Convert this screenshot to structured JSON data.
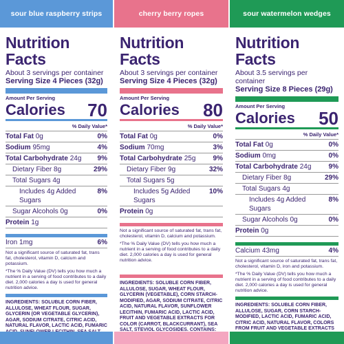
{
  "colors": {
    "blue": "#5b98d8",
    "pink": "#e8738c",
    "green": "#1f9a56",
    "text": "#3b2470"
  },
  "panels": [
    {
      "header": "sour blue raspberry strips",
      "title": "Nutrition Facts",
      "servings": "About 3 servings per container",
      "serving_size": "Serving Size 4 Pieces (32g)",
      "aps": "Amount Per Serving",
      "calories_label": "Calories",
      "calories": "70",
      "dv_label": "% Daily Value*",
      "rows": [
        {
          "l": "Total Fat",
          "v": "0g",
          "p": "0%"
        },
        {
          "l": "Sodium",
          "v": "95mg",
          "p": "4%"
        },
        {
          "l": "Total Carbohydrate",
          "v": "24g",
          "p": "9%"
        },
        {
          "l": "Dietary Fiber 8g",
          "v": "",
          "p": "29%"
        },
        {
          "l": "Total Sugars 4g",
          "v": "",
          "p": ""
        },
        {
          "l": "Includes 4g Added Sugars",
          "v": "",
          "p": "8%"
        },
        {
          "l": "Sugar Alcohols 0g",
          "v": "",
          "p": "0%"
        },
        {
          "l": "Protein",
          "v": "1g",
          "p": ""
        },
        {
          "l": "Iron 1mg",
          "v": "",
          "p": "6%"
        }
      ],
      "note": "Not a significant source of saturated fat, trans fat, cholesterol, vitamin D, calcium and potassium.",
      "footnote": "*The % Daily Value (DV) tells you how much a nutrient in a serving of food contributes to a daily diet. 2,000 calories a day is used for general nutrition advice.",
      "ingredients": "INGREDIENTS: SOLUBLE CORN FIBER, ALLULOSE, WHEAT FLOUR, SUGAR, GLYCERIN (OR VEGETABLE GLYCERIN), AGAR, SODIUM CITRATE, CITRIC ACID, NATURAL FLAVOR, LACTIC ACID, FUMARIC ACID, SUNFLOWER LECITHIN, SEA SALT, FRUIT AND VEGETABLE JUICE FOR COLOR (CARROT, BLUEBERRY), STEVIOL GLYCOSIDES."
    },
    {
      "header": "cherry berry ropes",
      "title": "Nutrition Facts",
      "servings": "About 3 servings per container",
      "serving_size": "Serving Size 4 Pieces (32g)",
      "aps": "Amount Per Serving",
      "calories_label": "Calories",
      "calories": "80",
      "dv_label": "% Daily Value*",
      "rows": [
        {
          "l": "Total Fat",
          "v": "0g",
          "p": "0%"
        },
        {
          "l": "Sodium",
          "v": "70mg",
          "p": "3%"
        },
        {
          "l": "Total Carbohydrate",
          "v": "25g",
          "p": "9%"
        },
        {
          "l": "Dietary Fiber 9g",
          "v": "",
          "p": "32%"
        },
        {
          "l": "Total Sugars 5g",
          "v": "",
          "p": ""
        },
        {
          "l": "Includes 5g Added Sugars",
          "v": "",
          "p": "10%"
        },
        {
          "l": "Protein",
          "v": "0g",
          "p": ""
        }
      ],
      "note": "Not a significant source of saturated fat, trans fat, cholesterol, vitamin D, calcium and potassium.",
      "footnote": "*The % Daily Value (DV) tells you how much a nutrient in a serving of food contributes to a daily diet. 2,000 calories a day is used for general nutrition advice.",
      "ingredients": "INGREDIENTS: SOLUBLE CORN FIBER, ALLULOSE, SUGAR, WHEAT FLOUR, GLYCERIN (VEGETABLE), CORN STARCH-MODIFIED, AGAR, SODIUM CITRATE, CITRIC ACID, NATURAL FLAVOR, SUNFLOWER LECITHIN, FUMARIC ACID, LACTIC ACID, FRUIT AND VEGETABLE EXTRACTS FOR COLOR (CARROT, BLACKCURRANT), SEA SALT, STEVIOL GLYCOSIDES. CONTAINS: WHEAT."
    },
    {
      "header": "sour watermelon wedges",
      "title": "Nutrition Facts",
      "servings": "About 3.5 servings per container",
      "serving_size": "Serving Size 8 Pieces (29g)",
      "aps": "Amount Per Serving",
      "calories_label": "Calories",
      "calories": "50",
      "dv_label": "% Daily Value*",
      "rows": [
        {
          "l": "Total Fat",
          "v": "0g",
          "p": "0%"
        },
        {
          "l": "Sodium",
          "v": "0mg",
          "p": "0%"
        },
        {
          "l": "Total Carbohydrate",
          "v": "24g",
          "p": "9%"
        },
        {
          "l": "Dietary Fiber 8g",
          "v": "",
          "p": "29%"
        },
        {
          "l": "Total Sugars 4g",
          "v": "",
          "p": ""
        },
        {
          "l": "Includes 4g Added Sugars",
          "v": "",
          "p": "8%"
        },
        {
          "l": "Sugar Alcohols 0g",
          "v": "",
          "p": "0%"
        },
        {
          "l": "Protein",
          "v": "0g",
          "p": ""
        },
        {
          "l": "Calcium 43mg",
          "v": "",
          "p": "4%"
        }
      ],
      "note": "Not a significant source of saturated fat, trans fat, cholesterol, vitamin D, iron and potassium.",
      "footnote": "*The % Daily Value (DV) tells you how much a nutrient in a serving of food contributes to a daily diet. 2,000 calories a day is used for general nutrition advice.",
      "ingredients": "INGREDIENTS: SOLUBLE CORN FIBER, ALLULOSE, SUGAR, CORN STARCH-MODIFIED, LACTIC ACID, FUMARIC ACID, CITRIC ACID, NATURAL FLAVOR, COLORS FROM FRUIT AND VEGETABLE EXTRACTS (CARROT AND BLACKCURRANT), TURMERIC AND SPIRULINA FOR COLOR, STEVIA EXTRACT."
    }
  ]
}
